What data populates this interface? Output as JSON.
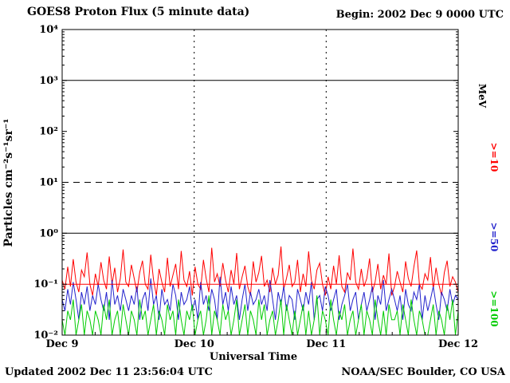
{
  "header": {
    "title": "GOES8 Proton Flux (5 minute data)",
    "begin_label": "Begin: 2002 Dec 9 0000 UTC"
  },
  "footer": {
    "updated": "Updated 2002 Dec 11 23:56:04 UTC",
    "source": "NOAA/SEC Boulder, CO USA"
  },
  "axes": {
    "ylabel": "Particles cm⁻²s⁻¹sr⁻¹",
    "xlabel": "Universal Time",
    "ytick_labels": [
      "10⁴",
      "10³",
      "10²",
      "10¹",
      "10⁰",
      "10⁻¹",
      "10⁻²"
    ],
    "xtick_labels": [
      "Dec 9",
      "Dec 10",
      "Dec 11",
      "Dec 12"
    ],
    "right_axis_title": "MeV",
    "right_series_labels": [
      {
        "text": ">=10",
        "color": "#ff0000"
      },
      {
        "text": ">=50",
        "color": "#2222cc"
      },
      {
        "text": ">=100",
        "color": "#00cc00"
      }
    ]
  },
  "chart_data": {
    "type": "line",
    "title": "GOES8 Proton Flux (5 minute data)",
    "xlabel": "Universal Time",
    "ylabel": "Particles cm⁻²s⁻¹sr⁻¹",
    "yscale": "log",
    "ylim": [
      0.01,
      10000
    ],
    "x_days": [
      "Dec 9",
      "Dec 10",
      "Dec 11",
      "Dec 12"
    ],
    "x_hours_span": 72,
    "sample_interval_minutes": 30,
    "gridlines": {
      "h_solid": [
        1000,
        1
      ],
      "h_dashed": [
        10
      ],
      "v_dashed_at_days": [
        "Dec 10",
        "Dec 11"
      ]
    },
    "threshold_line": {
      "value": 0.1,
      "color": "#ff0000"
    },
    "series": [
      {
        "name": ">=10 MeV",
        "color": "#ff0000",
        "values": [
          0.12,
          0.08,
          0.22,
          0.09,
          0.31,
          0.11,
          0.07,
          0.19,
          0.14,
          0.42,
          0.1,
          0.06,
          0.16,
          0.09,
          0.27,
          0.12,
          0.08,
          0.35,
          0.1,
          0.21,
          0.07,
          0.13,
          0.48,
          0.11,
          0.09,
          0.24,
          0.13,
          0.07,
          0.17,
          0.29,
          0.1,
          0.08,
          0.38,
          0.12,
          0.06,
          0.2,
          0.11,
          0.07,
          0.33,
          0.09,
          0.15,
          0.25,
          0.08,
          0.45,
          0.12,
          0.09,
          0.18,
          0.06,
          0.22,
          0.1,
          0.08,
          0.3,
          0.13,
          0.07,
          0.52,
          0.11,
          0.16,
          0.09,
          0.26,
          0.12,
          0.07,
          0.19,
          0.1,
          0.41,
          0.08,
          0.14,
          0.23,
          0.09,
          0.06,
          0.28,
          0.11,
          0.17,
          0.36,
          0.09,
          0.12,
          0.07,
          0.21,
          0.1,
          0.15,
          0.55,
          0.08,
          0.13,
          0.24,
          0.09,
          0.11,
          0.3,
          0.07,
          0.16,
          0.09,
          0.44,
          0.12,
          0.08,
          0.19,
          0.26,
          0.1,
          0.06,
          0.14,
          0.08,
          0.23,
          0.1,
          0.37,
          0.09,
          0.07,
          0.17,
          0.12,
          0.5,
          0.11,
          0.08,
          0.2,
          0.09,
          0.13,
          0.32,
          0.07,
          0.11,
          0.25,
          0.08,
          0.15,
          0.1,
          0.4,
          0.06,
          0.09,
          0.18,
          0.11,
          0.07,
          0.28,
          0.13,
          0.09,
          0.22,
          0.46,
          0.1,
          0.08,
          0.16,
          0.12,
          0.34,
          0.08,
          0.21,
          0.1,
          0.06,
          0.17,
          0.29,
          0.09,
          0.14,
          0.11,
          0.07
        ]
      },
      {
        "name": ">=50 MeV",
        "color": "#2222cc",
        "values": [
          0.05,
          0.03,
          0.08,
          0.04,
          0.11,
          0.05,
          0.02,
          0.07,
          0.04,
          0.09,
          0.03,
          0.06,
          0.04,
          0.1,
          0.05,
          0.03,
          0.07,
          0.02,
          0.12,
          0.04,
          0.06,
          0.03,
          0.08,
          0.05,
          0.03,
          0.06,
          0.04,
          0.09,
          0.02,
          0.05,
          0.07,
          0.03,
          0.13,
          0.04,
          0.06,
          0.02,
          0.08,
          0.04,
          0.05,
          0.03,
          0.1,
          0.06,
          0.02,
          0.07,
          0.04,
          0.05,
          0.09,
          0.03,
          0.05,
          0.02,
          0.11,
          0.04,
          0.06,
          0.03,
          0.08,
          0.05,
          0.02,
          0.14,
          0.04,
          0.07,
          0.03,
          0.09,
          0.04,
          0.06,
          0.02,
          0.05,
          0.1,
          0.03,
          0.07,
          0.04,
          0.05,
          0.08,
          0.04,
          0.06,
          0.03,
          0.12,
          0.05,
          0.02,
          0.07,
          0.04,
          0.09,
          0.03,
          0.06,
          0.05,
          0.02,
          0.08,
          0.05,
          0.03,
          0.07,
          0.04,
          0.11,
          0.02,
          0.05,
          0.06,
          0.03,
          0.09,
          0.06,
          0.03,
          0.05,
          0.08,
          0.02,
          0.04,
          0.06,
          0.1,
          0.03,
          0.05,
          0.07,
          0.02,
          0.04,
          0.07,
          0.03,
          0.05,
          0.09,
          0.02,
          0.06,
          0.04,
          0.12,
          0.03,
          0.05,
          0.08,
          0.05,
          0.03,
          0.06,
          0.02,
          0.08,
          0.04,
          0.03,
          0.07,
          0.05,
          0.1,
          0.02,
          0.06,
          0.03,
          0.05,
          0.09,
          0.04,
          0.02,
          0.07,
          0.05,
          0.03,
          0.08,
          0.04,
          0.06,
          0.05
        ]
      },
      {
        "name": ">=100 MeV",
        "color": "#00cc00",
        "values": [
          0.02,
          0.01,
          0.03,
          0.02,
          0.05,
          0.01,
          0.02,
          0.04,
          0.01,
          0.03,
          0.02,
          0.01,
          0.03,
          0.02,
          0.01,
          0.04,
          0.02,
          0.05,
          0.01,
          0.02,
          0.03,
          0.01,
          0.04,
          0.02,
          0.01,
          0.03,
          0.02,
          0.01,
          0.05,
          0.02,
          0.03,
          0.01,
          0.02,
          0.04,
          0.01,
          0.03,
          0.02,
          0.01,
          0.04,
          0.02,
          0.03,
          0.01,
          0.05,
          0.02,
          0.01,
          0.03,
          0.02,
          0.04,
          0.01,
          0.02,
          0.03,
          0.01,
          0.02,
          0.06,
          0.01,
          0.03,
          0.02,
          0.01,
          0.04,
          0.02,
          0.03,
          0.01,
          0.02,
          0.05,
          0.01,
          0.02,
          0.04,
          0.01,
          0.03,
          0.02,
          0.01,
          0.05,
          0.02,
          0.04,
          0.01,
          0.02,
          0.03,
          0.01,
          0.02,
          0.05,
          0.01,
          0.04,
          0.02,
          0.01,
          0.03,
          0.01,
          0.02,
          0.04,
          0.01,
          0.03,
          0.01,
          0.02,
          0.06,
          0.01,
          0.03,
          0.02,
          0.01,
          0.05,
          0.02,
          0.01,
          0.03,
          0.02,
          0.04,
          0.01,
          0.02,
          0.03,
          0.01,
          0.02,
          0.04,
          0.01,
          0.03,
          0.02,
          0.01,
          0.05,
          0.02,
          0.01,
          0.03,
          0.01,
          0.04,
          0.02,
          0.02,
          0.03,
          0.01,
          0.04,
          0.02,
          0.01,
          0.05,
          0.02,
          0.01,
          0.03,
          0.02,
          0.01,
          0.01,
          0.02,
          0.04,
          0.01,
          0.03,
          0.02,
          0.01,
          0.04,
          0.02,
          0.05,
          0.01,
          0.03
        ]
      }
    ]
  }
}
